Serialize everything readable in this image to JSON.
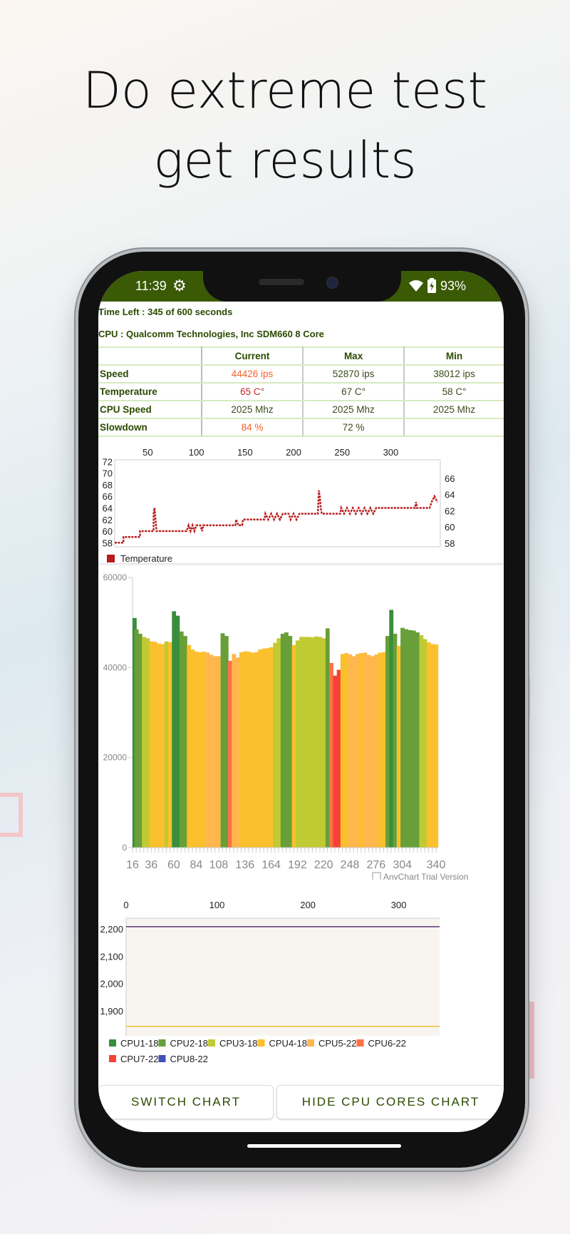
{
  "headline": {
    "line1": "Do extreme test",
    "line2": "get results"
  },
  "status_bar": {
    "time": "11:39",
    "battery": "93%",
    "icons": [
      "gear-icon",
      "wifi-icon",
      "battery-charging-icon"
    ]
  },
  "test": {
    "time_left": "Time Left : 345 of 600 seconds",
    "cpu": "CPU : Qualcomm Technologies, Inc SDM660 8 Core"
  },
  "table": {
    "headers": [
      "",
      "Current",
      "Max",
      "Min"
    ],
    "rows": [
      {
        "label": "Speed",
        "current": "44426 ips",
        "max": "52870 ips",
        "min": "38012 ips"
      },
      {
        "label": "Temperature",
        "current": "65 C°",
        "max": "67 C°",
        "min": "58 C°"
      },
      {
        "label": "CPU Speed",
        "current": "2025 Mhz",
        "max": "2025 Mhz",
        "min": "2025 Mhz"
      },
      {
        "label": "Slowdown",
        "current": "84 %",
        "max": "72 %",
        "min": ""
      }
    ]
  },
  "colors": {
    "accent": "#3a5a05",
    "highlight": "#f4602a",
    "temperature": "#b71c1c"
  },
  "chart_data": [
    {
      "type": "line",
      "legend": [
        "Temperature"
      ],
      "legend_placement": "bottom-left",
      "x_ticks": [
        "50",
        "100",
        "150",
        "200",
        "250",
        "300"
      ],
      "y_ticks_left": [
        "58",
        "60",
        "62",
        "64",
        "66",
        "68",
        "70",
        "72"
      ],
      "y_ticks_right": [
        "58",
        "60",
        "62",
        "64",
        "66"
      ],
      "xlim": [
        16,
        351
      ],
      "ylim": [
        57.3,
        72.3
      ],
      "series": [
        {
          "name": "Temperature",
          "color": "#b71c1c",
          "points": [
            [
              16,
              58
            ],
            [
              25,
              58
            ],
            [
              25,
              59
            ],
            [
              42,
              59
            ],
            [
              42,
              60
            ],
            [
              56,
              60
            ],
            [
              56,
              63
            ],
            [
              57,
              64
            ],
            [
              58,
              62
            ],
            [
              59,
              60
            ],
            [
              90,
              60
            ],
            [
              92,
              61
            ],
            [
              94,
              60
            ],
            [
              96,
              61
            ],
            [
              98,
              60
            ],
            [
              100,
              61
            ],
            [
              104,
              61
            ],
            [
              106,
              60
            ],
            [
              107,
              61
            ],
            [
              140,
              61
            ],
            [
              141,
              62
            ],
            [
              143,
              61
            ],
            [
              147,
              61
            ],
            [
              148,
              62
            ],
            [
              170,
              62
            ],
            [
              171,
              63
            ],
            [
              174,
              62
            ],
            [
              177,
              63
            ],
            [
              180,
              62
            ],
            [
              183,
              63
            ],
            [
              186,
              62
            ],
            [
              189,
              63
            ],
            [
              195,
              63
            ],
            [
              197,
              62
            ],
            [
              200,
              63
            ],
            [
              203,
              62
            ],
            [
              206,
              63
            ],
            [
              225,
              63
            ],
            [
              226,
              67
            ],
            [
              227,
              66
            ],
            [
              228,
              64
            ],
            [
              229,
              63
            ],
            [
              248,
              63
            ],
            [
              249,
              64
            ],
            [
              252,
              63
            ],
            [
              255,
              64
            ],
            [
              258,
              63
            ],
            [
              261,
              64
            ],
            [
              264,
              63
            ],
            [
              267,
              64
            ],
            [
              270,
              63
            ],
            [
              273,
              64
            ],
            [
              276,
              63
            ],
            [
              279,
              64
            ],
            [
              282,
              63
            ],
            [
              285,
              64
            ],
            [
              286,
              64
            ],
            [
              325,
              64
            ],
            [
              326,
              65
            ],
            [
              327,
              64
            ],
            [
              340,
              64
            ],
            [
              342,
              65
            ],
            [
              345,
              66
            ],
            [
              348,
              65
            ]
          ]
        }
      ]
    },
    {
      "type": "bar",
      "ylim": [
        0,
        60000
      ],
      "y_ticks": [
        "0",
        "20000",
        "40000",
        "60000"
      ],
      "x_ticks": [
        "16",
        "36",
        "60",
        "84",
        "108",
        "136",
        "164",
        "192",
        "220",
        "248",
        "276",
        "304",
        "340"
      ],
      "x": [
        16,
        20,
        24,
        28,
        32,
        36,
        40,
        44,
        48,
        52,
        56,
        60,
        64,
        68,
        72,
        76,
        80,
        84,
        88,
        92,
        96,
        100,
        104,
        108,
        112,
        116,
        120,
        124,
        128,
        132,
        136,
        140,
        144,
        148,
        152,
        156,
        160,
        164,
        168,
        172,
        176,
        180,
        184,
        188,
        192,
        196,
        200,
        204,
        208,
        212,
        216,
        220,
        224,
        228,
        232,
        236,
        240,
        244,
        248,
        252,
        256,
        260,
        264,
        268,
        272,
        276,
        280,
        284,
        288,
        292,
        296,
        300,
        304,
        308,
        312,
        316,
        320,
        324,
        328,
        332,
        336,
        340
      ],
      "values": [
        51000,
        48500,
        47500,
        46800,
        46500,
        45800,
        45700,
        45300,
        45200,
        45800,
        45600,
        52500,
        51500,
        48000,
        47000,
        45000,
        44000,
        43500,
        43400,
        43500,
        43300,
        42800,
        42500,
        42500,
        47600,
        47000,
        41500,
        43000,
        42200,
        43400,
        43600,
        43500,
        43300,
        43400,
        44000,
        44200,
        44300,
        44500,
        45500,
        46500,
        47500,
        47800,
        47000,
        45000,
        46000,
        46800,
        46800,
        46800,
        46700,
        46900,
        46800,
        46500,
        48700,
        41000,
        38200,
        39500,
        43000,
        43200,
        42900,
        42500,
        43000,
        43200,
        43300,
        42800,
        42500,
        42900,
        43300,
        43400,
        47000,
        52800,
        47500,
        44800,
        48800,
        48500,
        48300,
        48200,
        47800,
        47200,
        46300,
        45600,
        45200,
        45100
      ],
      "core": [
        1,
        2,
        2,
        3,
        3,
        4,
        4,
        4,
        4,
        3,
        4,
        1,
        1,
        2,
        2,
        4,
        4,
        4,
        4,
        4,
        5,
        5,
        5,
        5,
        2,
        2,
        6,
        5,
        5,
        4,
        4,
        4,
        4,
        4,
        4,
        4,
        4,
        4,
        3,
        3,
        2,
        2,
        2,
        4,
        3,
        3,
        3,
        3,
        3,
        3,
        3,
        3,
        2,
        6,
        7,
        7,
        4,
        4,
        5,
        5,
        5,
        4,
        5,
        5,
        5,
        5,
        4,
        4,
        2,
        1,
        2,
        4,
        2,
        2,
        2,
        2,
        2,
        3,
        3,
        4,
        4,
        4
      ],
      "watermark": "AnyChart Trial Version"
    },
    {
      "type": "line",
      "x_ticks": [
        "0",
        "100",
        "200",
        "300"
      ],
      "y_ticks": [
        "1,900",
        "2,000",
        "2,100",
        "2,200"
      ],
      "xlim": [
        0,
        345
      ],
      "ylim": [
        1805,
        2245
      ],
      "series": [
        {
          "name": "CPU1-18",
          "color": "#388e3c",
          "value": 1843
        },
        {
          "name": "CPU2-18",
          "color": "#689f38",
          "value": 1843
        },
        {
          "name": "CPU3-18",
          "color": "#c0ca33",
          "value": 1843
        },
        {
          "name": "CPU4-18",
          "color": "#fbc02d",
          "value": 1843
        },
        {
          "name": "CPU5-22",
          "color": "#ffb74d",
          "value": 2208
        },
        {
          "name": "CPU6-22",
          "color": "#ff7043",
          "value": 2208
        },
        {
          "name": "CPU7-22",
          "color": "#f44336",
          "value": 2208
        },
        {
          "name": "CPU8-22",
          "color": "#3f51b5",
          "value": 2208
        }
      ],
      "legend_placement": "bottom"
    }
  ],
  "buttons": {
    "switch_chart": "SWITCH CHART",
    "hide_cores": "HIDE CPU CORES CHART"
  }
}
